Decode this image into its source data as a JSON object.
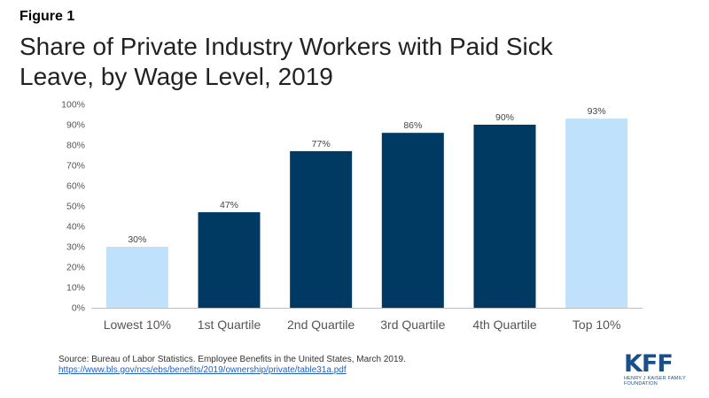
{
  "figure_label": "Figure 1",
  "title": "Share of Private Industry Workers with Paid Sick Leave, by Wage Level, 2019",
  "source": {
    "text": "Source: Bureau of Labor Statistics. Employee Benefits in the United States, March 2019.",
    "link": "https://www.bls.gov/ncs/ebs/benefits/2019/ownership/private/table31a.pdf"
  },
  "logo": {
    "word": "KFF",
    "sub": "HENRY J KAISER FAMILY FOUNDATION"
  },
  "colors": {
    "dark_bar": "#003a63",
    "light_bar": "#bfe1fb"
  },
  "chart_data": {
    "type": "bar",
    "categories": [
      "Lowest 10%",
      "1st Quartile",
      "2nd Quartile",
      "3rd Quartile",
      "4th Quartile",
      "Top 10%"
    ],
    "values": [
      30,
      47,
      77,
      86,
      90,
      93
    ],
    "data_labels": [
      "30%",
      "47%",
      "77%",
      "86%",
      "90%",
      "93%"
    ],
    "highlight": [
      "light",
      "dark",
      "dark",
      "dark",
      "dark",
      "light"
    ],
    "y_ticks": [
      "0%",
      "10%",
      "20%",
      "30%",
      "40%",
      "50%",
      "60%",
      "70%",
      "80%",
      "90%",
      "100%"
    ],
    "ylim": [
      0,
      100
    ],
    "title": "Share of Private Industry Workers with Paid Sick Leave, by Wage Level, 2019",
    "xlabel": "",
    "ylabel": "",
    "grid": false
  }
}
